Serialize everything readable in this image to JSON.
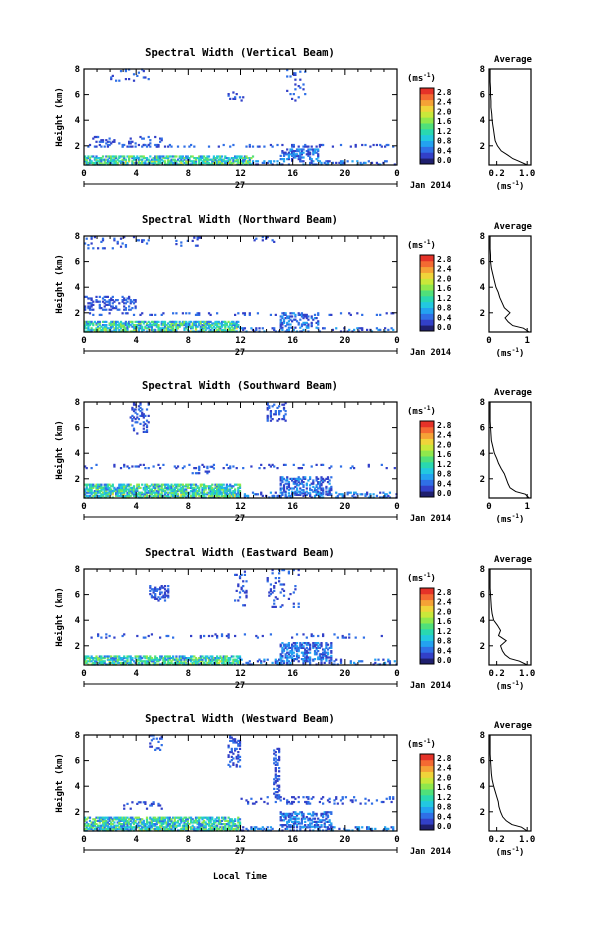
{
  "figure": {
    "xlabel": "Local Time",
    "ylabel": "Height (km)",
    "x_ticks": [
      "0",
      "4",
      "8",
      "12",
      "16",
      "20",
      "0"
    ],
    "date_day": "27",
    "date_month": "Jan 2014",
    "colorbar": {
      "unit": "(ms",
      "unit_sup": "-1",
      "unit_close": ")",
      "ticks": [
        "0.0",
        "0.4",
        "0.8",
        "1.2",
        "1.6",
        "2.0",
        "2.4",
        "2.8"
      ],
      "colors": [
        "#1f1f6e",
        "#3240c8",
        "#2f6fe6",
        "#23a2f0",
        "#22c8e0",
        "#29d8b0",
        "#4fe07a",
        "#8fe84c",
        "#c9e83a",
        "#f0d43a",
        "#f5a236",
        "#f46a32",
        "#e53228"
      ]
    },
    "avg_title": "Average",
    "avg_unit": "(ms",
    "avg_unit_sup": "-1",
    "avg_unit_close": ")"
  },
  "chart_data": [
    {
      "type": "heatmap",
      "title": "Spectral Width (Vertical Beam)",
      "y_ticks": [
        "2",
        "4",
        "6",
        "8"
      ],
      "xlim": [
        0,
        24
      ],
      "ylim": [
        0.5,
        8
      ],
      "average_profile": {
        "title": "Average",
        "x_ticks": [
          "0.2",
          "1.0"
        ],
        "y_ticks": [
          "2",
          "4",
          "6",
          "8"
        ],
        "xlim": [
          0,
          1.1
        ],
        "heights": [
          0.5,
          0.8,
          1.0,
          1.3,
          1.6,
          2.0,
          2.4,
          2.8,
          3.2,
          3.6,
          4.0,
          4.5,
          5.0,
          5.5,
          6.0,
          6.5,
          7.0,
          7.5,
          8.0
        ],
        "values": [
          1.0,
          0.78,
          0.62,
          0.48,
          0.32,
          0.22,
          0.16,
          0.14,
          0.12,
          0.1,
          0.08,
          0.07,
          0.05,
          0.05,
          0.04,
          0.04,
          0.03,
          0.03,
          0.03
        ]
      }
    },
    {
      "type": "heatmap",
      "title": "Spectral Width (Northward Beam)",
      "y_ticks": [
        "2",
        "4",
        "6",
        "8"
      ],
      "xlim": [
        0,
        24
      ],
      "ylim": [
        0.5,
        8
      ],
      "average_profile": {
        "title": "Average",
        "x_ticks": [
          "0",
          "1"
        ],
        "y_ticks": [
          "2",
          "4",
          "6",
          "8"
        ],
        "xlim": [
          0,
          1.1
        ],
        "heights": [
          0.5,
          0.8,
          1.0,
          1.3,
          1.6,
          2.0,
          2.4,
          2.8,
          3.2,
          3.6,
          4.0,
          4.5,
          5.0,
          5.5,
          6.0,
          6.5,
          7.0,
          7.5,
          8.0
        ],
        "values": [
          1.05,
          0.9,
          0.62,
          0.5,
          0.42,
          0.55,
          0.4,
          0.34,
          0.28,
          0.24,
          0.18,
          0.14,
          0.1,
          0.06,
          0.04,
          0.04,
          0.03,
          0.03,
          0.03
        ]
      }
    },
    {
      "type": "heatmap",
      "title": "Spectral Width (Southward Beam)",
      "y_ticks": [
        "2",
        "4",
        "6",
        "8"
      ],
      "xlim": [
        0,
        24
      ],
      "ylim": [
        0.5,
        8
      ],
      "average_profile": {
        "title": "Average",
        "x_ticks": [
          "0",
          "1"
        ],
        "y_ticks": [
          "2",
          "4",
          "6",
          "8"
        ],
        "xlim": [
          0,
          1.1
        ],
        "heights": [
          0.5,
          0.8,
          1.0,
          1.3,
          1.6,
          2.0,
          2.4,
          2.8,
          3.2,
          3.6,
          4.0,
          4.5,
          5.0,
          5.5,
          6.0,
          6.5,
          7.0,
          7.5,
          8.0
        ],
        "values": [
          1.05,
          0.95,
          0.7,
          0.55,
          0.5,
          0.45,
          0.4,
          0.32,
          0.25,
          0.2,
          0.14,
          0.1,
          0.06,
          0.05,
          0.04,
          0.03,
          0.03,
          0.03,
          0.03
        ]
      }
    },
    {
      "type": "heatmap",
      "title": "Spectral Width (Eastward Beam)",
      "y_ticks": [
        "2",
        "4",
        "6",
        "8"
      ],
      "xlim": [
        0,
        24
      ],
      "ylim": [
        0.5,
        8
      ],
      "average_profile": {
        "title": "Average",
        "x_ticks": [
          "0.2",
          "1.0"
        ],
        "y_ticks": [
          "2",
          "4",
          "6",
          "8"
        ],
        "xlim": [
          0,
          1.1
        ],
        "heights": [
          0.5,
          0.8,
          1.0,
          1.3,
          1.6,
          2.0,
          2.4,
          2.8,
          3.2,
          3.6,
          4.0,
          4.5,
          5.0,
          5.5,
          6.0,
          6.5,
          7.0,
          7.5,
          8.0
        ],
        "values": [
          1.0,
          0.8,
          0.55,
          0.42,
          0.35,
          0.3,
          0.45,
          0.25,
          0.3,
          0.22,
          0.12,
          0.08,
          0.06,
          0.05,
          0.04,
          0.03,
          0.03,
          0.03,
          0.03
        ]
      }
    },
    {
      "type": "heatmap",
      "title": "Spectral Width (Westward Beam)",
      "y_ticks": [
        "2",
        "4",
        "6",
        "8"
      ],
      "xlim": [
        0,
        24
      ],
      "ylim": [
        0.5,
        8
      ],
      "average_profile": {
        "title": "Average",
        "x_ticks": [
          "0.2",
          "1.0"
        ],
        "y_ticks": [
          "2",
          "4",
          "6",
          "8"
        ],
        "xlim": [
          0,
          1.1
        ],
        "heights": [
          0.5,
          0.8,
          1.0,
          1.3,
          1.6,
          2.0,
          2.4,
          2.8,
          3.2,
          3.6,
          4.0,
          4.5,
          5.0,
          5.5,
          6.0,
          6.5,
          7.0,
          7.5,
          8.0
        ],
        "values": [
          1.0,
          0.85,
          0.6,
          0.45,
          0.36,
          0.3,
          0.26,
          0.24,
          0.2,
          0.16,
          0.12,
          0.08,
          0.06,
          0.05,
          0.04,
          0.03,
          0.03,
          0.03,
          0.03
        ]
      }
    }
  ]
}
